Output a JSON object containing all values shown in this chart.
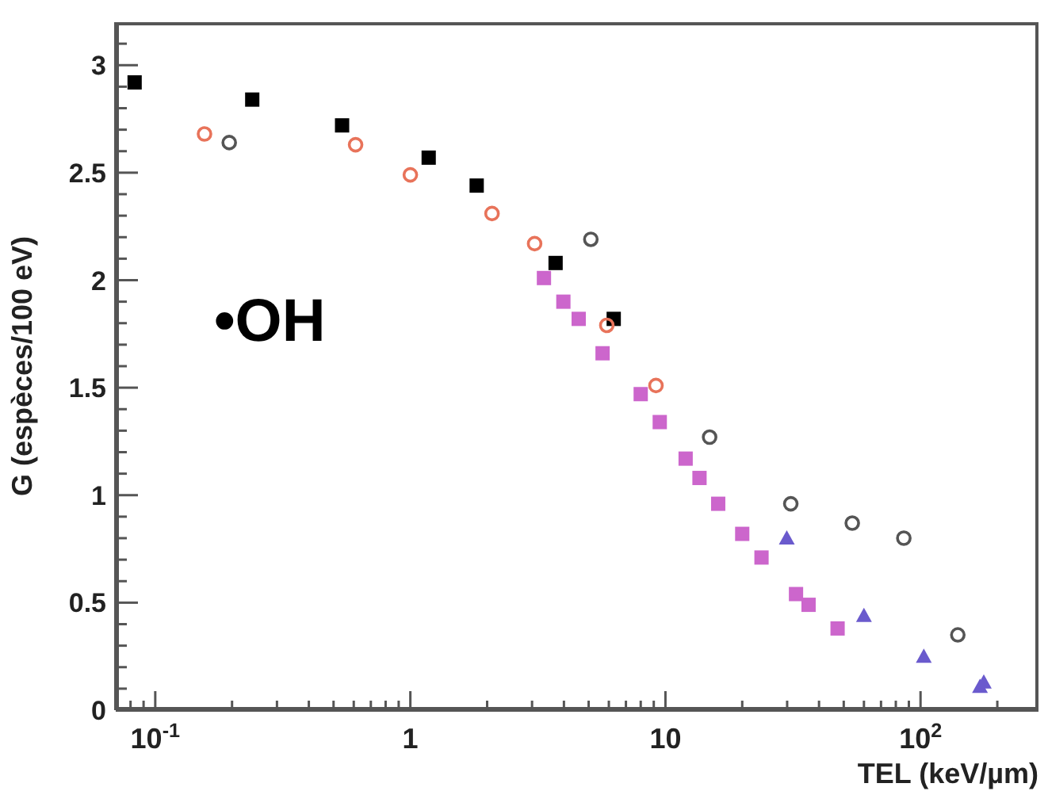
{
  "chart_data": {
    "type": "scatter",
    "xlabel": "TEL (keV/µm)",
    "ylabel": "G (espèces/100 eV)",
    "log": "x",
    "grid": false,
    "legend": false,
    "annotations": [
      "•OH"
    ],
    "xlim": [
      0.07,
      290
    ],
    "ylim": [
      0,
      3.2
    ],
    "xticks": [
      {
        "value": 0.08,
        "label": null
      },
      {
        "value": 0.09,
        "label": null
      },
      {
        "value": 0.1,
        "label": "10$^{-1}$"
      },
      {
        "value": 0.2,
        "label": null
      },
      {
        "value": 0.3,
        "label": null
      },
      {
        "value": 0.4,
        "label": null
      },
      {
        "value": 0.5,
        "label": null
      },
      {
        "value": 0.6,
        "label": null
      },
      {
        "value": 0.7,
        "label": null
      },
      {
        "value": 0.8,
        "label": null
      },
      {
        "value": 0.9,
        "label": null
      },
      1,
      {
        "value": 2,
        "label": null
      },
      {
        "value": 3,
        "label": null
      },
      {
        "value": 4,
        "label": null
      },
      {
        "value": 5,
        "label": null
      },
      {
        "value": 6,
        "label": null
      },
      {
        "value": 7,
        "label": null
      },
      {
        "value": 8,
        "label": null
      },
      {
        "value": 9,
        "label": null
      },
      10,
      {
        "value": 20,
        "label": null
      },
      {
        "value": 30,
        "label": null
      },
      {
        "value": 40,
        "label": null
      },
      {
        "value": 50,
        "label": null
      },
      {
        "value": 60,
        "label": null
      },
      {
        "value": 70,
        "label": null
      },
      {
        "value": 80,
        "label": null
      },
      {
        "value": 90,
        "label": null
      },
      {
        "value": 100,
        "label": "10$^{2}$"
      },
      {
        "value": 200,
        "label": null
      }
    ],
    "yticks": [
      0,
      {
        "value": 0.1,
        "label": null
      },
      {
        "value": 0.2,
        "label": null
      },
      {
        "value": 0.3,
        "label": null
      },
      {
        "value": 0.4,
        "label": null
      },
      0.5,
      {
        "value": 0.6,
        "label": null
      },
      {
        "value": 0.7,
        "label": null
      },
      {
        "value": 0.8,
        "label": null
      },
      {
        "value": 0.9,
        "label": null
      },
      1,
      {
        "value": 1.1,
        "label": null
      },
      {
        "value": 1.2,
        "label": null
      },
      {
        "value": 1.3,
        "label": null
      },
      {
        "value": 1.4,
        "label": null
      },
      1.5,
      {
        "value": 1.6,
        "label": null
      },
      {
        "value": 1.7,
        "label": null
      },
      {
        "value": 1.8,
        "label": null
      },
      {
        "value": 1.9,
        "label": null
      },
      2,
      {
        "value": 2.1,
        "label": null
      },
      {
        "value": 2.2,
        "label": null
      },
      {
        "value": 2.3,
        "label": null
      },
      {
        "value": 2.4,
        "label": null
      },
      2.5,
      {
        "value": 2.6,
        "label": null
      },
      {
        "value": 2.7,
        "label": null
      },
      {
        "value": 2.8,
        "label": null
      },
      {
        "value": 2.9,
        "label": null
      },
      3,
      {
        "value": 3.1,
        "label": null
      }
    ],
    "series": [
      {
        "color": "#000000",
        "marker": "square",
        "x": [
          0.083,
          0.24,
          0.54,
          1.18,
          1.82,
          3.71,
          6.27
        ],
        "values": [
          2.92,
          2.84,
          2.72,
          2.57,
          2.44,
          2.08,
          1.82
        ]
      },
      {
        "color": "#e8735a",
        "marker": "circle",
        "x": [
          0.156,
          0.61,
          1.0,
          2.09,
          3.07,
          5.89,
          9.18
        ],
        "values": [
          2.68,
          2.63,
          2.49,
          2.31,
          2.17,
          1.79,
          1.51
        ]
      },
      {
        "color": "#555555",
        "marker": "circle",
        "x": [
          0.195,
          5.1,
          14.9,
          31,
          54,
          86,
          140
        ],
        "values": [
          2.64,
          2.19,
          1.27,
          0.96,
          0.87,
          0.8,
          0.35
        ]
      },
      {
        "color": "#cc66cc",
        "marker": "square",
        "x": [
          3.34,
          3.98,
          4.57,
          5.67,
          8.0,
          9.5,
          12.0,
          13.6,
          16.1,
          20,
          23.8,
          32.5,
          36.4,
          47.3
        ],
        "values": [
          2.01,
          1.9,
          1.82,
          1.66,
          1.47,
          1.34,
          1.17,
          1.08,
          0.96,
          0.82,
          0.71,
          0.54,
          0.49,
          0.38
        ]
      },
      {
        "color": "#6a5acd",
        "marker": "triangle",
        "x": [
          29.9,
          60,
          103,
          171,
          177
        ],
        "values": [
          0.8,
          0.44,
          0.25,
          0.11,
          0.13
        ]
      }
    ]
  }
}
